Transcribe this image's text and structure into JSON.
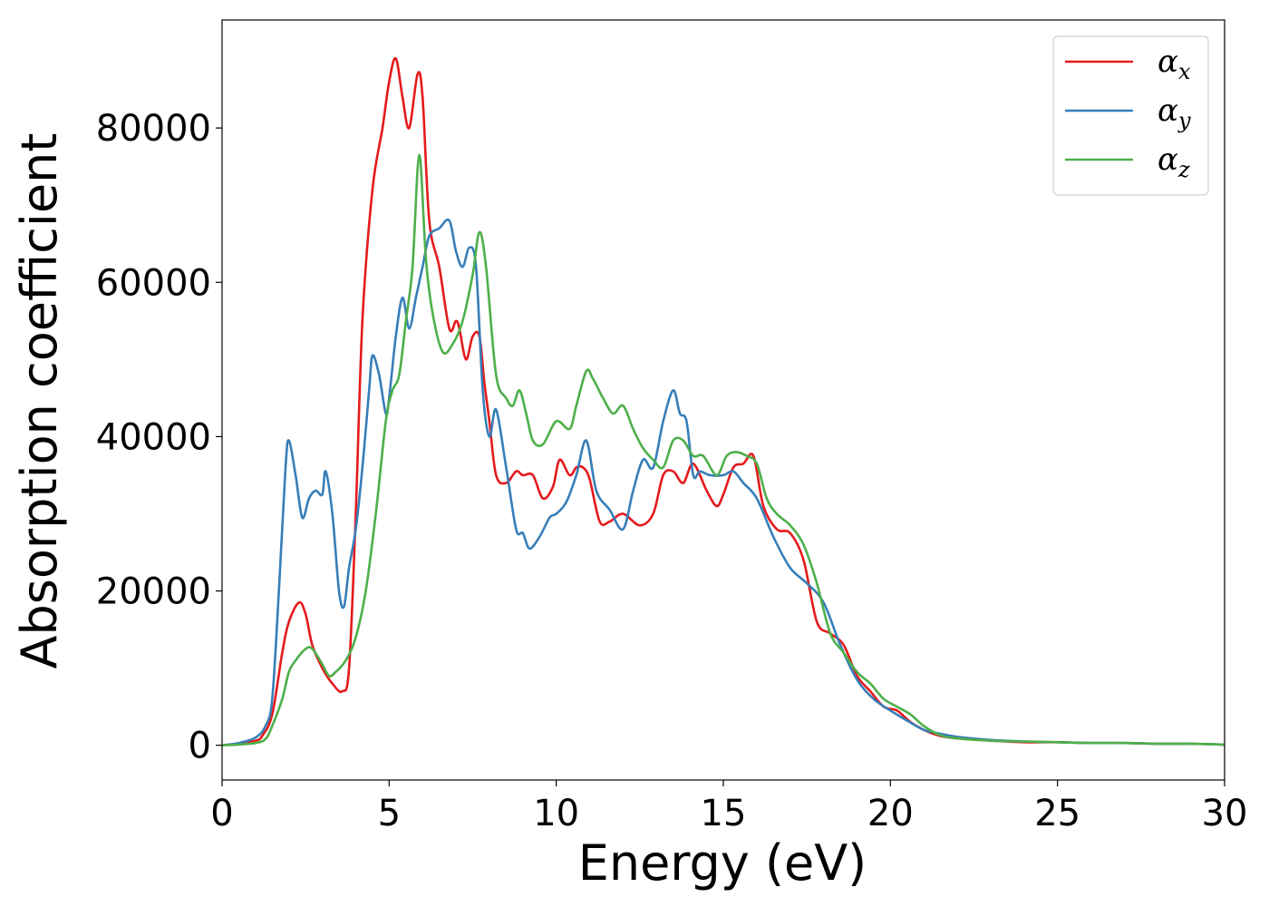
{
  "chart_data": {
    "type": "line",
    "title": "",
    "xlabel": "Energy (eV)",
    "ylabel": "Absorption coefficient",
    "xlim": [
      0,
      30
    ],
    "ylim": [
      -4500,
      94000
    ],
    "xticks": [
      0,
      5,
      10,
      15,
      20,
      25,
      30
    ],
    "yticks": [
      0,
      20000,
      40000,
      60000,
      80000
    ],
    "grid": false,
    "legend_position": "top-right",
    "series": [
      {
        "name": "α",
        "subscript": "x",
        "color": "#e41a1c",
        "x": [
          0,
          0.5,
          1.0,
          1.2,
          1.5,
          1.8,
          2.0,
          2.3,
          2.5,
          2.7,
          3.0,
          3.3,
          3.6,
          3.8,
          4.0,
          4.2,
          4.5,
          4.8,
          5.0,
          5.2,
          5.4,
          5.6,
          5.85,
          6.0,
          6.2,
          6.5,
          6.8,
          7.0,
          7.1,
          7.3,
          7.5,
          7.7,
          7.85,
          8.0,
          8.2,
          8.5,
          8.8,
          9.0,
          9.3,
          9.6,
          9.9,
          10.1,
          10.4,
          10.6,
          10.8,
          11.0,
          11.3,
          11.6,
          12.0,
          12.5,
          12.9,
          13.2,
          13.5,
          13.8,
          14.1,
          14.5,
          14.8,
          15.0,
          15.3,
          15.6,
          15.9,
          16.2,
          16.6,
          17.0,
          17.4,
          17.8,
          18.2,
          18.6,
          19.0,
          19.4,
          19.8,
          20.2,
          20.6,
          21.0,
          21.5,
          22.0,
          23.0,
          24.0,
          25.0,
          26.0,
          27.0,
          28.0,
          29.0,
          30.0
        ],
        "y": [
          0,
          200,
          600,
          1200,
          4000,
          12000,
          16000,
          18500,
          17000,
          13000,
          10000,
          8000,
          7000,
          10000,
          30000,
          55000,
          72000,
          80000,
          86000,
          89000,
          84000,
          80000,
          87000,
          84000,
          68000,
          62000,
          54000,
          55000,
          54000,
          50000,
          53000,
          53000,
          47000,
          42000,
          35000,
          34000,
          35500,
          35000,
          35000,
          32000,
          33500,
          37000,
          35000,
          36000,
          36000,
          34500,
          29000,
          29000,
          30000,
          28500,
          30000,
          35000,
          35500,
          34000,
          36500,
          33000,
          31000,
          32500,
          36000,
          36500,
          37500,
          31000,
          28000,
          27500,
          24000,
          16000,
          14500,
          13000,
          9000,
          7000,
          5000,
          4500,
          3000,
          2000,
          1200,
          900,
          600,
          400,
          400,
          300,
          300,
          200,
          200,
          100
        ]
      },
      {
        "name": "α",
        "subscript": "y",
        "color": "#377eb8",
        "x": [
          0,
          0.5,
          1.0,
          1.3,
          1.5,
          1.7,
          1.9,
          2.0,
          2.2,
          2.4,
          2.6,
          2.8,
          3.0,
          3.1,
          3.3,
          3.5,
          3.65,
          3.8,
          4.0,
          4.2,
          4.4,
          4.5,
          4.7,
          4.9,
          5.0,
          5.2,
          5.4,
          5.6,
          5.8,
          6.0,
          6.2,
          6.5,
          6.8,
          7.0,
          7.2,
          7.4,
          7.6,
          7.8,
          8.0,
          8.2,
          8.5,
          8.8,
          9.0,
          9.2,
          9.5,
          9.8,
          10.0,
          10.3,
          10.6,
          10.9,
          11.2,
          11.6,
          12.0,
          12.3,
          12.6,
          12.9,
          13.2,
          13.5,
          13.7,
          13.9,
          14.1,
          14.3,
          14.6,
          15.0,
          15.3,
          15.6,
          16.0,
          16.5,
          17.0,
          17.5,
          18.0,
          18.5,
          19.0,
          19.5,
          20.0,
          20.5,
          21.0,
          21.5,
          22.0,
          23.0,
          24.0,
          25.0,
          26.0,
          27.0,
          28.0,
          29.0,
          30.0
        ],
        "y": [
          0,
          300,
          1000,
          2500,
          6000,
          20000,
          36000,
          39500,
          35000,
          29500,
          32000,
          33000,
          32500,
          35500,
          30000,
          20000,
          18000,
          23000,
          28000,
          36000,
          46000,
          50500,
          48000,
          43000,
          45000,
          53000,
          58000,
          54000,
          58000,
          62000,
          66000,
          67000,
          68000,
          64000,
          62000,
          64500,
          62000,
          46000,
          40000,
          43500,
          36000,
          28000,
          27500,
          25500,
          27000,
          29500,
          30000,
          31500,
          35000,
          39500,
          33000,
          30500,
          28000,
          33000,
          37000,
          36000,
          42000,
          46000,
          43000,
          42000,
          35000,
          35500,
          35000,
          35000,
          35500,
          34000,
          32000,
          27000,
          23000,
          21000,
          18500,
          13000,
          8500,
          6000,
          4500,
          3200,
          2000,
          1500,
          1100,
          700,
          500,
          400,
          300,
          300,
          200,
          200,
          100
        ]
      },
      {
        "name": "α",
        "subscript": "z",
        "color": "#4daf4a",
        "x": [
          0,
          0.5,
          1.0,
          1.3,
          1.5,
          1.8,
          2.0,
          2.2,
          2.5,
          2.7,
          3.0,
          3.2,
          3.4,
          3.7,
          4.0,
          4.3,
          4.6,
          4.9,
          5.1,
          5.3,
          5.5,
          5.7,
          5.9,
          6.1,
          6.3,
          6.6,
          6.9,
          7.2,
          7.5,
          7.7,
          7.9,
          8.2,
          8.5,
          8.7,
          8.9,
          9.1,
          9.3,
          9.6,
          10.0,
          10.4,
          10.6,
          10.9,
          11.1,
          11.4,
          11.7,
          12.0,
          12.3,
          12.6,
          12.9,
          13.2,
          13.5,
          13.8,
          14.1,
          14.4,
          14.8,
          15.1,
          15.4,
          15.7,
          16.0,
          16.3,
          16.6,
          17.0,
          17.4,
          17.8,
          18.2,
          18.6,
          19.0,
          19.4,
          19.8,
          20.2,
          20.6,
          21.0,
          21.5,
          22.0,
          23.0,
          24.0,
          25.0,
          26.0,
          27.0,
          28.0,
          29.0,
          30.0
        ],
        "y": [
          0,
          100,
          300,
          800,
          2500,
          6000,
          9500,
          11000,
          12500,
          12500,
          10500,
          9000,
          9500,
          11000,
          14000,
          20000,
          30000,
          42000,
          46000,
          48000,
          55000,
          62000,
          76500,
          63000,
          56000,
          51000,
          52000,
          55000,
          61000,
          66500,
          62000,
          48000,
          45000,
          44000,
          46000,
          43000,
          39500,
          39000,
          42000,
          41000,
          44000,
          48500,
          47500,
          45000,
          43000,
          44000,
          41000,
          38500,
          37000,
          36000,
          39500,
          39500,
          37500,
          37500,
          35000,
          37500,
          38000,
          37500,
          36500,
          32000,
          30000,
          28500,
          26000,
          21000,
          14500,
          12000,
          9500,
          8000,
          6000,
          5000,
          4000,
          2500,
          1300,
          900,
          600,
          500,
          400,
          300,
          300,
          200,
          200,
          100
        ]
      }
    ]
  }
}
